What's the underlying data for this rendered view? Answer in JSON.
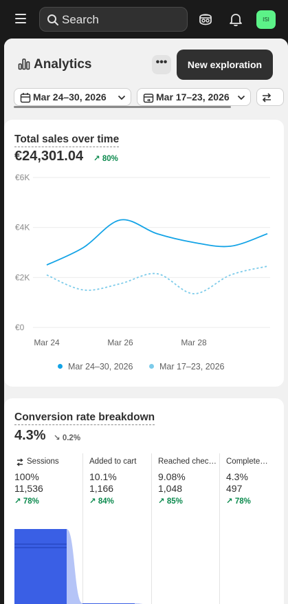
{
  "topbar": {
    "search_placeholder": "Search",
    "avatar_initials": "ISI",
    "avatar_color": "#5cf288"
  },
  "page": {
    "title": "Analytics",
    "more_label": "•••",
    "new_button_label": "New exploration",
    "date_range_primary": "Mar 24–30, 2026",
    "date_range_compare": "Mar 17–23, 2026"
  },
  "sales_card": {
    "title": "Total sales over time",
    "value": "€24,301.04",
    "delta": "80%",
    "legend_primary": "Mar 24–30, 2026",
    "legend_compare": "Mar 17–23, 2026"
  },
  "chart_data": {
    "type": "line",
    "title": "Total sales over time",
    "xlabel": "",
    "ylabel": "",
    "y_ticks": [
      "€6K",
      "€4K",
      "€2K",
      "€0"
    ],
    "x_ticks": [
      "Mar 24",
      "Mar 26",
      "Mar 28"
    ],
    "ylim": [
      0,
      6000
    ],
    "grid": true,
    "legend_position": "bottom",
    "x": [
      "Mar 24",
      "Mar 25",
      "Mar 26",
      "Mar 27",
      "Mar 28",
      "Mar 29",
      "Mar 30"
    ],
    "series": [
      {
        "name": "Mar 24–30, 2026",
        "color": "#13a3e6",
        "style": "solid",
        "values": [
          2500,
          3200,
          4300,
          3750,
          3400,
          3250,
          3750
        ]
      },
      {
        "name": "Mar 17–23, 2026",
        "color": "#7ccbea",
        "style": "dashed",
        "values": [
          2100,
          1500,
          1750,
          2150,
          1350,
          2100,
          2450
        ]
      }
    ]
  },
  "conversion_card": {
    "title": "Conversion rate breakdown",
    "value": "4.3%",
    "delta": "0.2%",
    "steps": [
      {
        "name": "Sessions",
        "pct": "100%",
        "count": "11,536",
        "delta": "78%",
        "fraction": 1.0
      },
      {
        "name": "Added to cart",
        "pct": "10.1%",
        "count": "1,166",
        "delta": "84%",
        "fraction": 0.101
      },
      {
        "name": "Reached chec…",
        "pct": "9.08%",
        "count": "1,048",
        "delta": "85%",
        "fraction": 0.0908
      },
      {
        "name": "Complete…",
        "pct": "4.3%",
        "count": "497",
        "delta": "78%",
        "fraction": 0.043
      }
    ],
    "bar_color": "#3a5fe5"
  }
}
